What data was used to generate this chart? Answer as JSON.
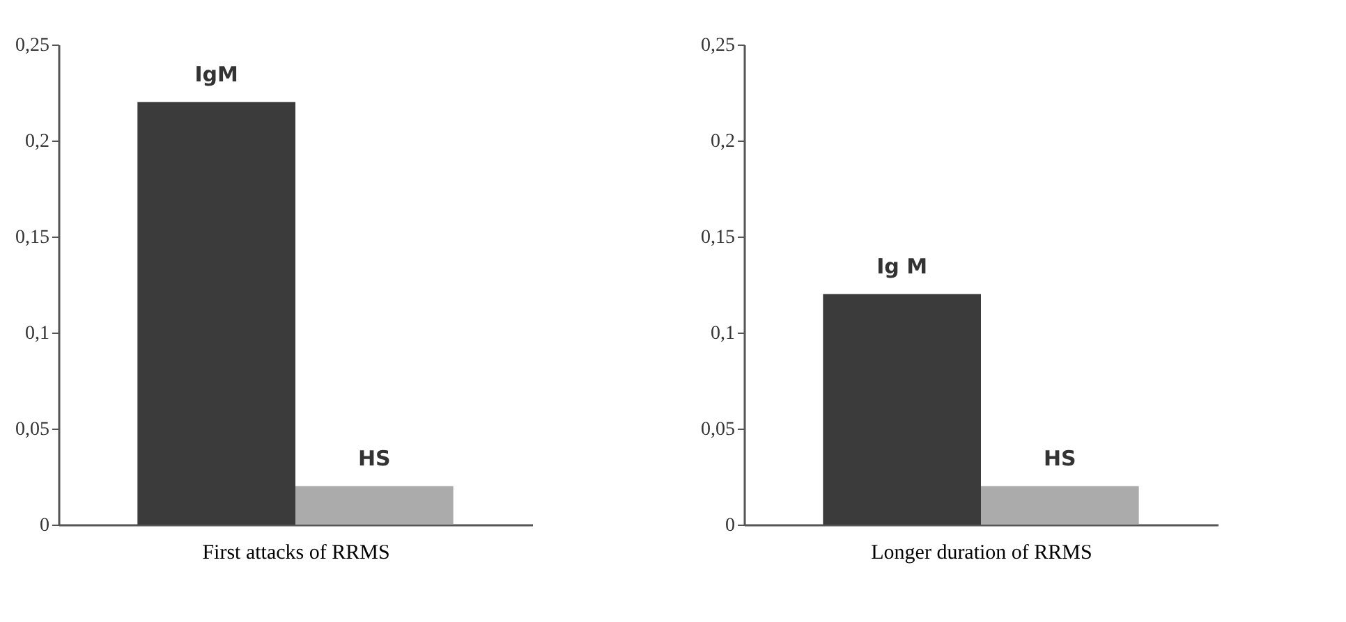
{
  "chart_data": [
    {
      "type": "bar",
      "xlabel": "First attacks of RRMS",
      "categories": [
        "IgM",
        "HS"
      ],
      "values": [
        0.22,
        0.02
      ],
      "colors": [
        "#3b3b3b",
        "#ababab"
      ],
      "ylim": [
        0,
        0.25
      ],
      "yticks": [
        0,
        {
          "value": 0.05,
          "label": "0,05"
        },
        {
          "value": 0.1,
          "label": "0,1"
        },
        {
          "value": 0.15,
          "label": "0,15"
        },
        {
          "value": 0.2,
          "label": "0,2"
        },
        {
          "value": 0.25,
          "label": "0,25"
        }
      ]
    },
    {
      "type": "bar",
      "xlabel": "Longer duration of RRMS",
      "categories": [
        "Ig M",
        "HS"
      ],
      "values": [
        0.12,
        0.02
      ],
      "colors": [
        "#3b3b3b",
        "#ababab"
      ],
      "ylim": [
        0,
        0.25
      ],
      "yticks": [
        0,
        {
          "value": 0.05,
          "label": "0,05"
        },
        {
          "value": 0.1,
          "label": "0,1"
        },
        {
          "value": 0.15,
          "label": "0,15"
        },
        {
          "value": 0.2,
          "label": "0,2"
        },
        {
          "value": 0.25,
          "label": "0,25"
        }
      ]
    }
  ]
}
